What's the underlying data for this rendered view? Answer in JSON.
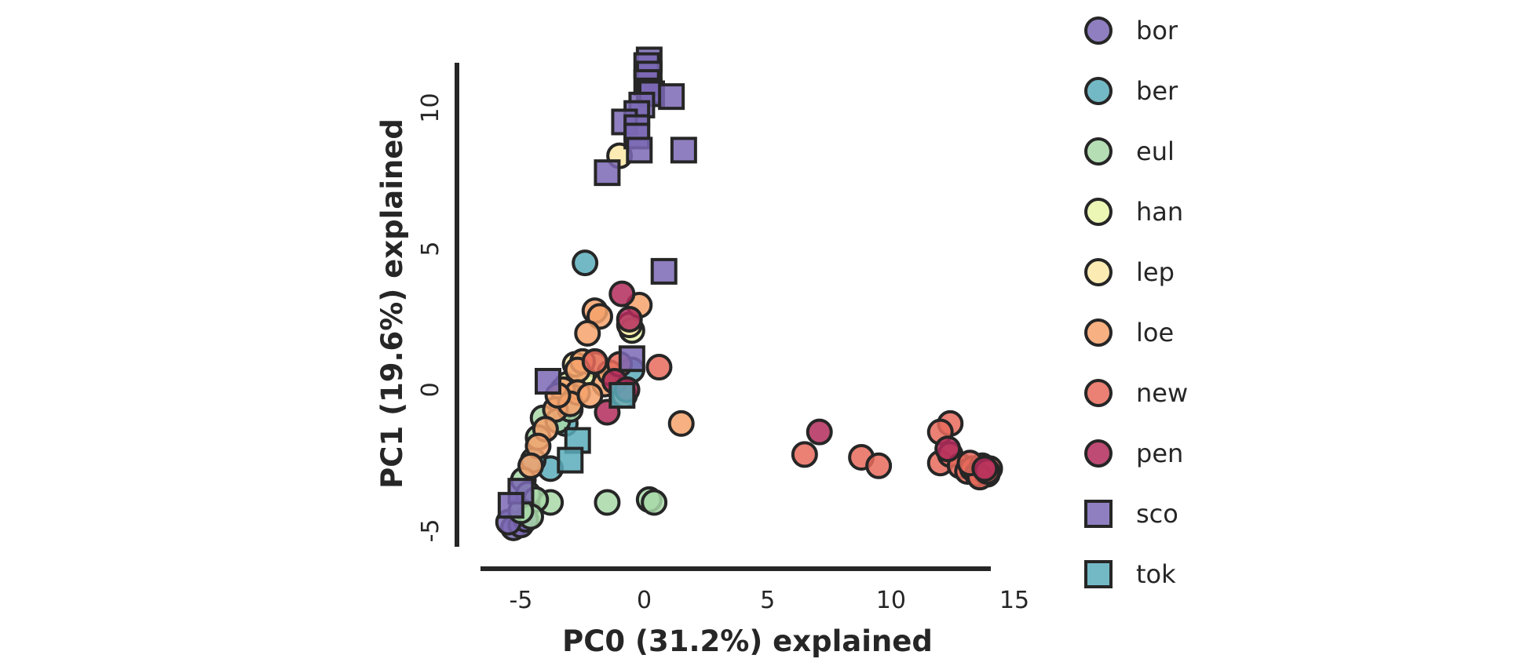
{
  "chart_data": {
    "type": "scatter",
    "xlabel": "PC0 (31.2%) explained",
    "ylabel": "PC1 (19.6%) explained",
    "xlim": [
      -6,
      15
    ],
    "ylim": [
      -5.6,
      11.6
    ],
    "xticks": [
      -5,
      0,
      5,
      10,
      15
    ],
    "yticks": [
      -5,
      0,
      5,
      10
    ],
    "grid": false,
    "legend_position": "right",
    "series": [
      {
        "name": "bor",
        "marker": "circle",
        "color": "#7b68b5",
        "points": [
          [
            -5.3,
            -4.9
          ],
          [
            -5.0,
            -4.8
          ],
          [
            -4.8,
            -4.6
          ],
          [
            -5.5,
            -4.7
          ]
        ]
      },
      {
        "name": "ber",
        "marker": "circle",
        "color": "#5aadbb",
        "points": [
          [
            -2.4,
            4.5
          ],
          [
            -0.5,
            0.7
          ],
          [
            -3.8,
            -2.8
          ],
          [
            -4.5,
            -2.5
          ],
          [
            -3.2,
            -1.2
          ]
        ]
      },
      {
        "name": "eul",
        "marker": "circle",
        "color": "#a8d8a8",
        "points": [
          [
            -1.5,
            -4.0
          ],
          [
            0.2,
            -3.9
          ],
          [
            0.4,
            -4.0
          ],
          [
            -4.1,
            -1.0
          ],
          [
            -4.3,
            -1.7
          ],
          [
            -4.9,
            -3.2
          ],
          [
            -4.7,
            -3.7
          ],
          [
            -3.8,
            -4.0
          ],
          [
            -4.4,
            -3.9
          ],
          [
            -4.6,
            -4.5
          ],
          [
            -5.0,
            -4.3
          ],
          [
            -3.5,
            -1.1
          ],
          [
            -3.0,
            -0.7
          ]
        ]
      },
      {
        "name": "han",
        "marker": "circle",
        "color": "#e9f4a8",
        "points": [
          [
            -0.5,
            2.1
          ],
          [
            -2.0,
            0.9
          ],
          [
            -3.1,
            0.2
          ],
          [
            -2.5,
            0.5
          ]
        ]
      },
      {
        "name": "lep",
        "marker": "circle",
        "color": "#fbe9a6",
        "points": [
          [
            -1.0,
            8.3
          ],
          [
            -0.6,
            2.3
          ],
          [
            -2.8,
            0.9
          ]
        ]
      },
      {
        "name": "loe",
        "marker": "circle",
        "color": "#f6a26b",
        "points": [
          [
            -2.0,
            2.8
          ],
          [
            -1.8,
            2.6
          ],
          [
            -2.3,
            2.0
          ],
          [
            -0.2,
            3.0
          ],
          [
            -2.5,
            1.0
          ],
          [
            -2.7,
            0.7
          ],
          [
            -3.3,
            0.0
          ],
          [
            -3.6,
            -0.7
          ],
          [
            -4.0,
            -1.4
          ],
          [
            -4.3,
            -2.0
          ],
          [
            -4.6,
            -2.7
          ],
          [
            -2.7,
            -0.1
          ],
          [
            -1.6,
            0.2
          ],
          [
            1.5,
            -1.2
          ],
          [
            -0.8,
            -0.2
          ],
          [
            -3.0,
            -0.5
          ],
          [
            -2.2,
            -0.2
          ],
          [
            -3.5,
            -0.2
          ],
          [
            -1.4,
            0.6
          ]
        ]
      },
      {
        "name": "new",
        "marker": "circle",
        "color": "#e86a5c",
        "points": [
          [
            6.5,
            -2.3
          ],
          [
            8.8,
            -2.4
          ],
          [
            9.5,
            -2.7
          ],
          [
            0.6,
            0.8
          ],
          [
            -1.0,
            0.9
          ],
          [
            -2.0,
            1.0
          ],
          [
            12.4,
            -1.2
          ],
          [
            12.0,
            -1.5
          ],
          [
            12.0,
            -2.6
          ],
          [
            12.4,
            -2.3
          ],
          [
            12.8,
            -2.7
          ],
          [
            13.1,
            -2.9
          ],
          [
            13.3,
            -2.8
          ],
          [
            13.5,
            -3.0
          ],
          [
            13.7,
            -2.7
          ],
          [
            13.9,
            -3.0
          ],
          [
            14.0,
            -2.8
          ],
          [
            13.6,
            -3.1
          ],
          [
            13.2,
            -2.6
          ],
          [
            13.9,
            -2.9
          ]
        ]
      },
      {
        "name": "pen",
        "marker": "circle",
        "color": "#b32c5c",
        "points": [
          [
            7.1,
            -1.5
          ],
          [
            -0.9,
            3.4
          ],
          [
            -0.6,
            2.5
          ],
          [
            -1.5,
            -0.8
          ],
          [
            -1.2,
            0.3
          ],
          [
            -0.7,
            0.0
          ],
          [
            12.3,
            -2.1
          ],
          [
            13.8,
            -2.8
          ]
        ]
      },
      {
        "name": "sco",
        "marker": "square",
        "color": "#7b68b5",
        "points": [
          [
            0.2,
            11.7
          ],
          [
            0.1,
            11.5
          ],
          [
            0.2,
            11.2
          ],
          [
            0.1,
            10.9
          ],
          [
            0.2,
            10.6
          ],
          [
            0.3,
            10.5
          ],
          [
            1.1,
            10.4
          ],
          [
            -0.1,
            10.1
          ],
          [
            -0.3,
            9.8
          ],
          [
            -0.8,
            9.5
          ],
          [
            -0.3,
            9.3
          ],
          [
            -0.3,
            9.0
          ],
          [
            -0.2,
            8.5
          ],
          [
            1.6,
            8.5
          ],
          [
            -1.5,
            7.7
          ],
          [
            0.8,
            4.2
          ],
          [
            -3.9,
            0.3
          ],
          [
            -0.5,
            1.1
          ],
          [
            -5.0,
            -3.6
          ],
          [
            -5.4,
            -4.1
          ]
        ]
      },
      {
        "name": "tok",
        "marker": "square",
        "color": "#5aadbb",
        "points": [
          [
            -2.7,
            -1.8
          ],
          [
            -3.0,
            -2.5
          ],
          [
            -0.9,
            -0.2
          ]
        ]
      }
    ]
  }
}
